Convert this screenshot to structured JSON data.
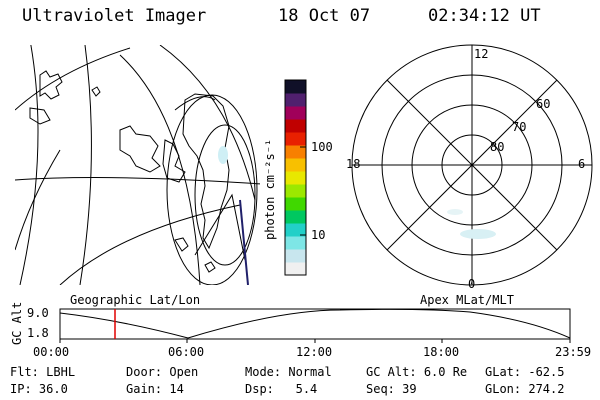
{
  "header": {
    "title": "Ultraviolet Imager",
    "date": "18 Oct 07",
    "time": "02:34:12 UT"
  },
  "colorbar": {
    "unit_label": "photon cm⁻²s⁻¹",
    "ticks": [
      "100",
      "10"
    ],
    "colors": [
      "#f0f0f0",
      "#c8e6ee",
      "#7ee6e6",
      "#22d0c8",
      "#00c860",
      "#40d800",
      "#9ce800",
      "#e8e800",
      "#f8c000",
      "#f88000",
      "#e82000",
      "#c00000",
      "#a0005a",
      "#50206e",
      "#101028"
    ]
  },
  "polar": {
    "mlt_labels": {
      "top": "12",
      "left": "18",
      "right": "6",
      "bottom": "0"
    },
    "lat_labels": [
      "60",
      "70",
      "80"
    ]
  },
  "timeline": {
    "left_label": "Geographic Lat/Lon",
    "right_label": "Apex MLat/MLT",
    "axis_title": "GC Alt",
    "y_ticks": [
      "9.0",
      "1.8"
    ],
    "x_ticks": [
      "00:00",
      "06:00",
      "12:00",
      "18:00",
      "23:59"
    ],
    "marker_color": "#e00000"
  },
  "footer": {
    "row1": [
      {
        "label": "Flt:",
        "value": "LBHL"
      },
      {
        "label": "Door:",
        "value": "Open"
      },
      {
        "label": "Mode:",
        "value": "Normal"
      },
      {
        "label": "GC Alt:",
        "value": "6.0 Re"
      },
      {
        "label": "GLat:",
        "value": "-62.5"
      }
    ],
    "row2": [
      {
        "label": "IP:",
        "value": "36.0"
      },
      {
        "label": "Gain:",
        "value": "14"
      },
      {
        "label": "Dsp:",
        "value": "5.4"
      },
      {
        "label": "Seq:",
        "value": "39"
      },
      {
        "label": "GLon:",
        "value": "274.2"
      }
    ]
  }
}
